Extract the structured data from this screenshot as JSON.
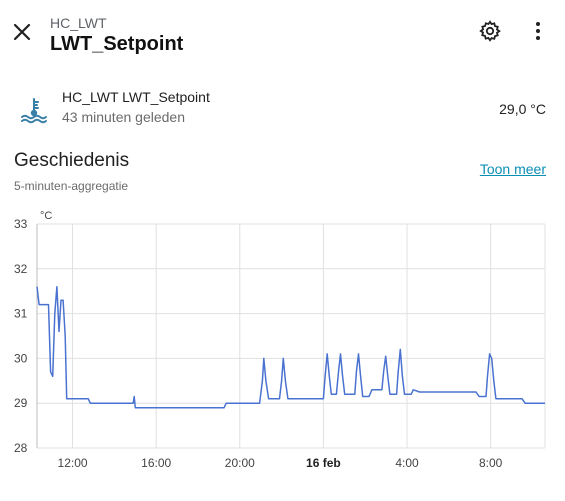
{
  "header": {
    "subtitle": "HC_LWT",
    "title": "LWT_Setpoint",
    "close_icon": "close-icon",
    "settings_icon": "gear-icon",
    "menu_icon": "more-vertical-icon"
  },
  "entity": {
    "icon": "thermometer-water-icon",
    "name": "HC_LWT LWT_Setpoint",
    "last_changed": "43 minuten geleden",
    "state": "29,0 °C"
  },
  "history": {
    "title": "Geschiedenis",
    "subtitle": "5-minuten-aggregatie",
    "show_more": "Toon meer"
  },
  "colors": {
    "accent": "#0a8fb4",
    "line": "#4a72d0",
    "grid": "#e0e0e0",
    "icon": "#3a7fa8"
  },
  "chart_data": {
    "type": "line",
    "unit": "°C",
    "ylim": [
      28,
      33
    ],
    "yticks": [
      "33",
      "32",
      "31",
      "30",
      "29",
      "28"
    ],
    "xlim": [
      10.3,
      34.6
    ],
    "xticks": [
      {
        "x": 12,
        "label": "12:00"
      },
      {
        "x": 16,
        "label": "16:00"
      },
      {
        "x": 20,
        "label": "20:00"
      },
      {
        "x": 24,
        "label": "16 feb"
      },
      {
        "x": 28,
        "label": "4:00"
      },
      {
        "x": 32,
        "label": "8:00"
      }
    ],
    "grid": true,
    "series": [
      {
        "values": [
          [
            10.3,
            31.6
          ],
          [
            10.4,
            31.2
          ],
          [
            10.85,
            31.2
          ],
          [
            10.95,
            29.7
          ],
          [
            11.05,
            29.6
          ],
          [
            11.15,
            31.0
          ],
          [
            11.25,
            31.6
          ],
          [
            11.35,
            30.6
          ],
          [
            11.45,
            31.3
          ],
          [
            11.55,
            31.3
          ],
          [
            11.65,
            30.5
          ],
          [
            11.72,
            29.1
          ],
          [
            12.0,
            29.1
          ],
          [
            12.75,
            29.1
          ],
          [
            12.85,
            29.0
          ],
          [
            14.9,
            29.0
          ],
          [
            14.95,
            29.15
          ],
          [
            15.0,
            28.9
          ],
          [
            19.25,
            28.9
          ],
          [
            19.35,
            29.0
          ],
          [
            20.95,
            29.0
          ],
          [
            21.08,
            29.5
          ],
          [
            21.15,
            30.0
          ],
          [
            21.25,
            29.5
          ],
          [
            21.38,
            29.1
          ],
          [
            21.9,
            29.1
          ],
          [
            22.0,
            29.5
          ],
          [
            22.08,
            30.0
          ],
          [
            22.18,
            29.5
          ],
          [
            22.3,
            29.1
          ],
          [
            24.0,
            29.1
          ],
          [
            24.08,
            29.6
          ],
          [
            24.18,
            30.1
          ],
          [
            24.28,
            29.6
          ],
          [
            24.38,
            29.2
          ],
          [
            24.62,
            29.2
          ],
          [
            24.72,
            29.7
          ],
          [
            24.82,
            30.1
          ],
          [
            24.92,
            29.6
          ],
          [
            25.02,
            29.2
          ],
          [
            25.5,
            29.2
          ],
          [
            25.58,
            29.7
          ],
          [
            25.68,
            30.1
          ],
          [
            25.78,
            29.6
          ],
          [
            25.88,
            29.15
          ],
          [
            26.18,
            29.15
          ],
          [
            26.32,
            29.3
          ],
          [
            26.8,
            29.3
          ],
          [
            26.88,
            29.7
          ],
          [
            26.98,
            30.05
          ],
          [
            27.08,
            29.6
          ],
          [
            27.18,
            29.2
          ],
          [
            27.5,
            29.2
          ],
          [
            27.58,
            29.7
          ],
          [
            27.68,
            30.2
          ],
          [
            27.78,
            29.6
          ],
          [
            27.88,
            29.2
          ],
          [
            28.2,
            29.2
          ],
          [
            28.3,
            29.3
          ],
          [
            28.6,
            29.25
          ],
          [
            31.3,
            29.25
          ],
          [
            31.45,
            29.15
          ],
          [
            31.78,
            29.15
          ],
          [
            31.85,
            29.6
          ],
          [
            31.95,
            30.1
          ],
          [
            32.05,
            30.0
          ],
          [
            32.15,
            29.5
          ],
          [
            32.25,
            29.1
          ],
          [
            33.5,
            29.1
          ],
          [
            33.65,
            29.0
          ],
          [
            34.6,
            29.0
          ]
        ]
      }
    ]
  }
}
